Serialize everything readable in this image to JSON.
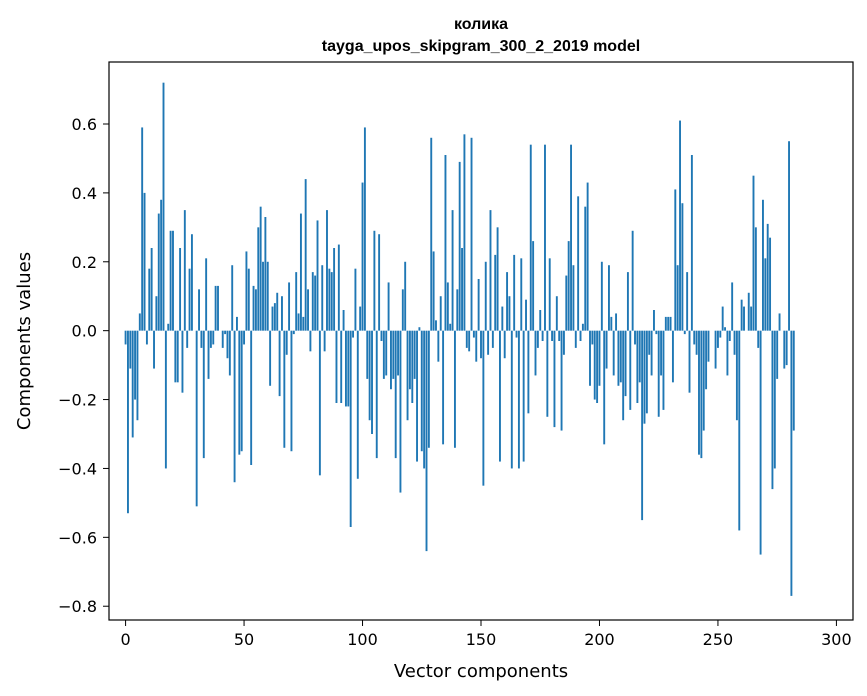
{
  "chart_data": {
    "type": "bar",
    "title": "колика",
    "subtitle": "tayga_upos_skipgram_300_2_2019 model",
    "xlabel": "Vector components",
    "ylabel": "Components values",
    "xlim": [
      -7,
      307
    ],
    "ylim": [
      -0.84,
      0.78
    ],
    "xticks": [
      0,
      50,
      100,
      150,
      200,
      250,
      300
    ],
    "yticks": [
      -0.8,
      -0.6,
      -0.4,
      -0.2,
      0.0,
      0.2,
      0.4,
      0.6
    ],
    "xtick_labels": [
      "0",
      "50",
      "100",
      "150",
      "200",
      "250",
      "300"
    ],
    "ytick_labels": [
      "−0.8",
      "−0.6",
      "−0.4",
      "−0.2",
      "0.0",
      "0.2",
      "0.4",
      "0.6"
    ],
    "bar_color": "#1f77b4",
    "values": [
      -0.04,
      -0.53,
      -0.11,
      -0.31,
      -0.2,
      -0.26,
      0.05,
      0.59,
      0.4,
      -0.04,
      0.18,
      0.24,
      -0.11,
      0.1,
      0.34,
      0.38,
      0.72,
      -0.4,
      0.02,
      0.29,
      0.29,
      -0.15,
      -0.15,
      0.24,
      -0.18,
      0.35,
      -0.05,
      0.18,
      0.28,
      0.0,
      -0.51,
      0.12,
      -0.05,
      -0.37,
      0.21,
      -0.14,
      -0.05,
      -0.04,
      0.13,
      0.13,
      0.0,
      -0.05,
      -0.01,
      -0.08,
      -0.13,
      0.19,
      -0.44,
      0.04,
      -0.36,
      -0.35,
      -0.04,
      0.23,
      0.18,
      -0.39,
      0.13,
      0.12,
      0.3,
      0.36,
      0.2,
      0.33,
      0.2,
      -0.16,
      0.07,
      0.08,
      0.11,
      -0.19,
      0.1,
      -0.34,
      -0.07,
      0.14,
      -0.35,
      -0.01,
      0.17,
      0.05,
      0.34,
      0.04,
      0.44,
      0.12,
      -0.06,
      0.17,
      0.16,
      0.32,
      -0.42,
      0.19,
      -0.06,
      0.35,
      0.18,
      0.17,
      0.24,
      -0.21,
      0.25,
      -0.21,
      0.06,
      -0.22,
      -0.22,
      -0.57,
      -0.02,
      0.18,
      -0.43,
      0.07,
      0.43,
      0.59,
      -0.14,
      -0.26,
      -0.3,
      0.29,
      -0.37,
      0.28,
      -0.03,
      -0.14,
      -0.13,
      0.14,
      -0.17,
      -0.14,
      -0.37,
      -0.13,
      -0.47,
      0.12,
      0.2,
      -0.26,
      -0.17,
      -0.21,
      -0.14,
      -0.38,
      0.01,
      -0.35,
      -0.4,
      -0.64,
      -0.34,
      0.56,
      0.23,
      0.03,
      -0.09,
      0.1,
      -0.33,
      0.51,
      0.14,
      0.02,
      0.35,
      -0.34,
      0.12,
      0.49,
      0.24,
      0.57,
      -0.05,
      -0.06,
      0.56,
      -0.02,
      -0.09,
      0.15,
      -0.08,
      -0.45,
      0.2,
      -0.07,
      0.35,
      -0.05,
      0.22,
      0.3,
      -0.38,
      0.07,
      -0.08,
      0.17,
      0.1,
      -0.4,
      0.22,
      -0.02,
      -0.4,
      0.21,
      -0.38,
      0.09,
      -0.24,
      0.54,
      0.26,
      -0.13,
      -0.05,
      0.06,
      -0.03,
      0.54,
      -0.25,
      0.21,
      -0.03,
      -0.28,
      0.1,
      -0.03,
      -0.29,
      -0.07,
      0.16,
      0.26,
      0.54,
      0.19,
      -0.05,
      0.39,
      -0.03,
      0.02,
      0.36,
      0.43,
      -0.16,
      -0.04,
      -0.2,
      -0.21,
      -0.16,
      0.2,
      -0.33,
      -0.11,
      0.19,
      0.04,
      -0.13,
      0.05,
      -0.16,
      -0.15,
      -0.26,
      -0.19,
      0.17,
      -0.23,
      0.29,
      -0.04,
      -0.21,
      -0.15,
      -0.55,
      -0.27,
      -0.24,
      -0.07,
      -0.13,
      0.06,
      -0.01,
      -0.25,
      -0.13,
      -0.23,
      0.04,
      0.04,
      0.04,
      -0.15,
      0.41,
      0.19,
      0.61,
      0.37,
      -0.01,
      0.17,
      -0.18,
      0.51,
      -0.04,
      -0.07,
      -0.36,
      -0.37,
      -0.29,
      -0.17,
      -0.09,
      0.0,
      0.0,
      -0.11,
      -0.05,
      -0.02,
      0.07,
      0.01,
      -0.13,
      -0.03,
      0.14,
      -0.07,
      -0.26,
      -0.58,
      0.09,
      0.07,
      0.0,
      0.11,
      0.07,
      0.45,
      0.3,
      -0.05,
      -0.65,
      0.38,
      0.21,
      0.31,
      0.27,
      -0.46,
      -0.4,
      -0.14,
      0.05,
      0.0,
      -0.11,
      -0.1,
      0.55,
      -0.77,
      -0.29,
      0.0
    ],
    "tick_labels_x_text": "",
    "note": ""
  }
}
